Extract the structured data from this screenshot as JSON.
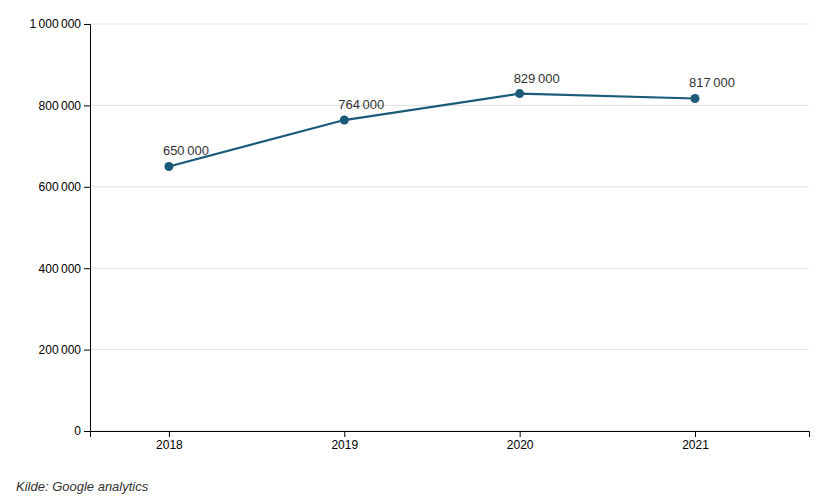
{
  "chart_data": {
    "type": "line",
    "x": [
      2018,
      2019,
      2020,
      2021
    ],
    "values": [
      650000,
      764000,
      829000,
      817000
    ],
    "value_labels": [
      "650 000",
      "764 000",
      "829 000",
      "817 000"
    ],
    "data_labels": true,
    "color": "#1c5a7a",
    "marker": "circle",
    "xlim": [
      2017.55,
      2021.65
    ],
    "xticks": [
      2018,
      2019,
      2020,
      2021
    ],
    "ylim": [
      0,
      1000000
    ],
    "yticks": [
      0,
      {
        "value": 200000,
        "label": "200 000"
      },
      {
        "value": 400000,
        "label": "400 000"
      },
      {
        "value": 600000,
        "label": "600 000"
      },
      {
        "value": 800000,
        "label": "800 000"
      },
      {
        "value": 1000000,
        "label": "1 000 000"
      }
    ],
    "grid": true,
    "annotations": [
      "Kilde: Google analytics"
    ]
  }
}
